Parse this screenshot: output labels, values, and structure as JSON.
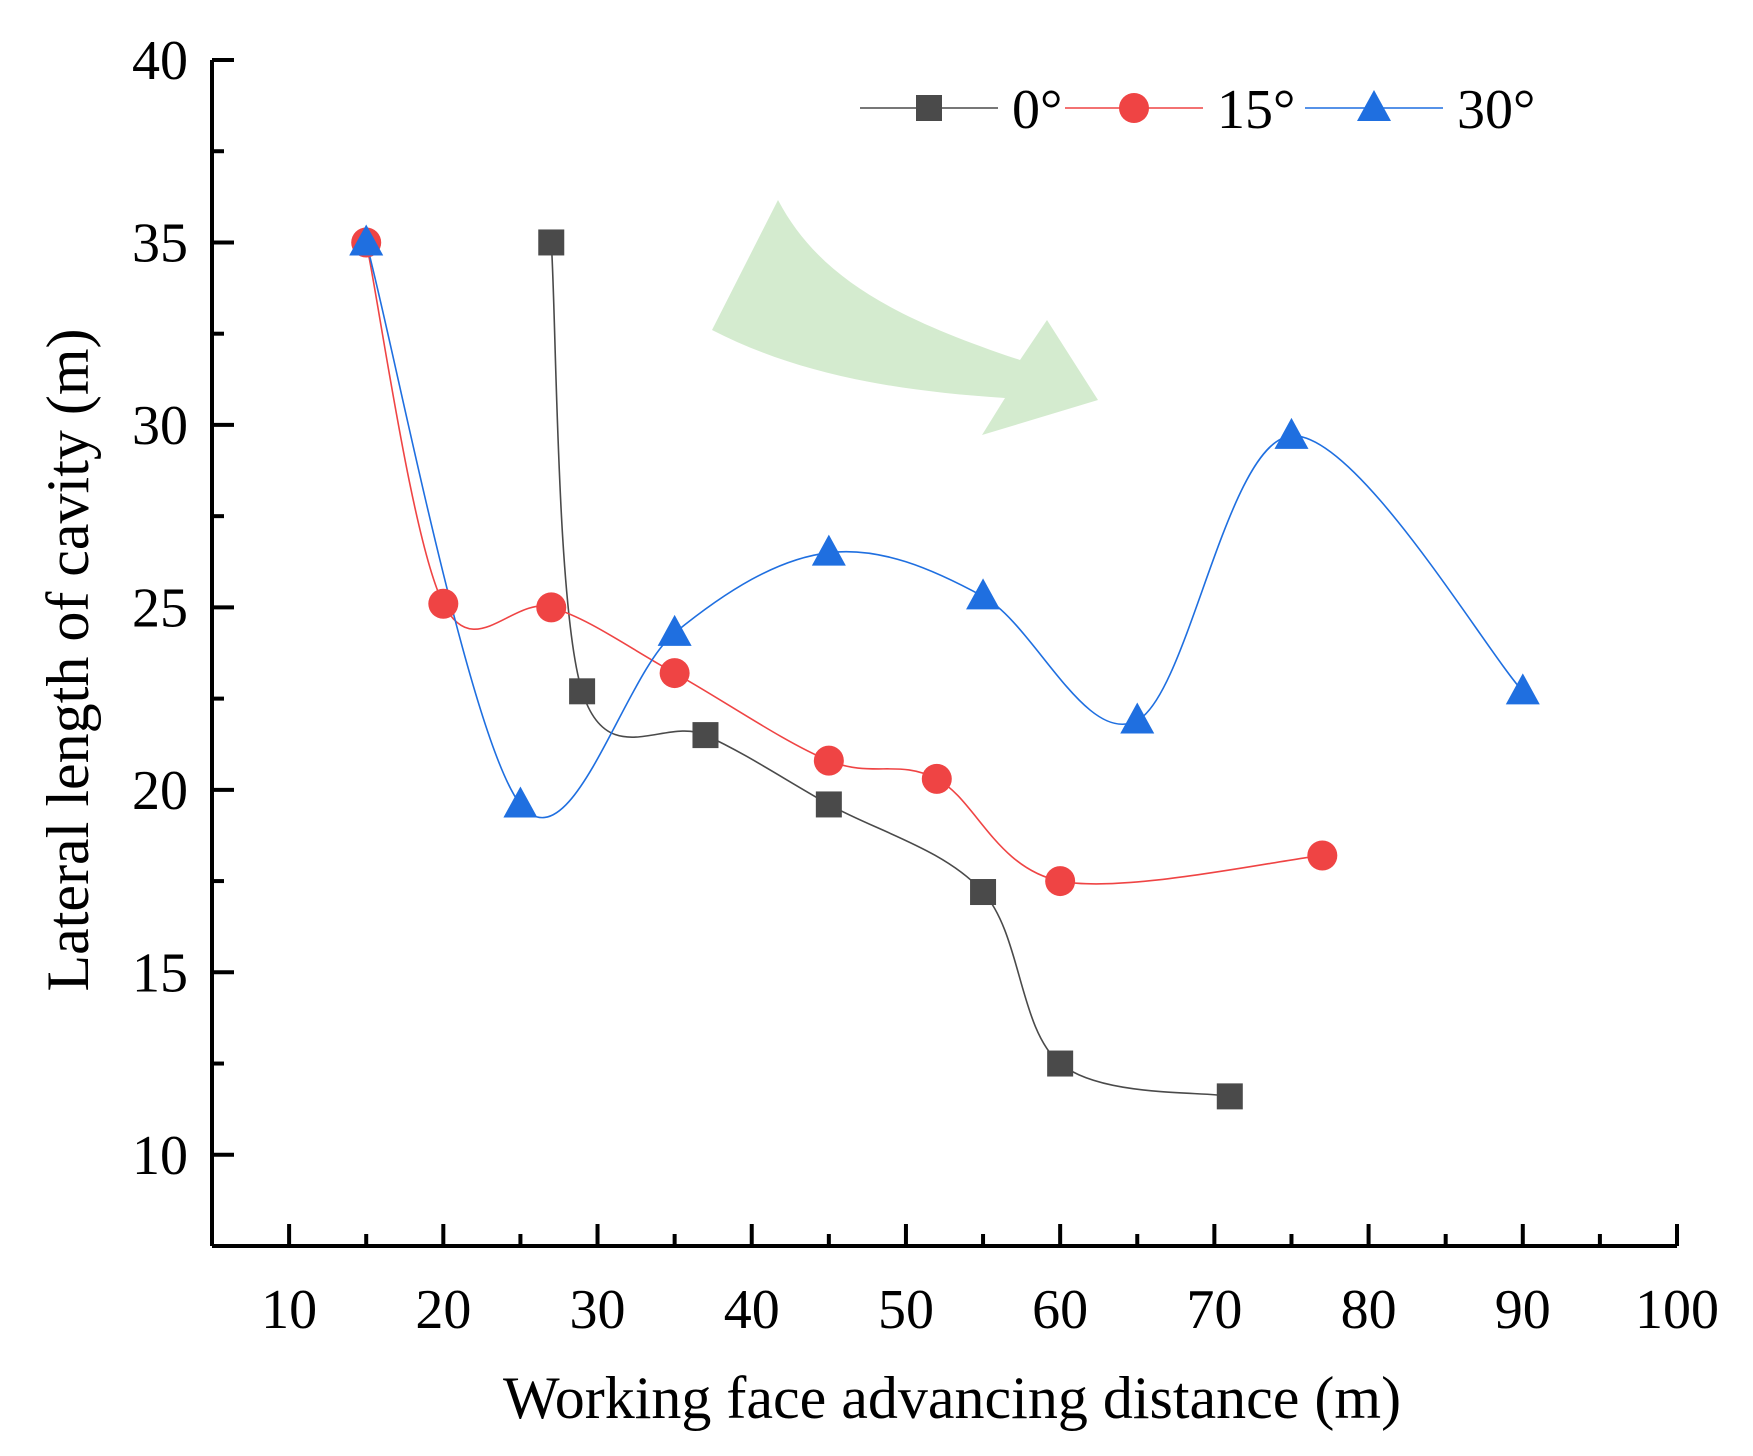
{
  "chart_data": {
    "type": "line",
    "title": "",
    "xlabel": "Working face advancing distance (m)",
    "ylabel": "Lateral length of cavity (m)",
    "xlim": [
      5,
      100
    ],
    "ylim": [
      7.5,
      40
    ],
    "xticks": [
      10,
      20,
      30,
      40,
      50,
      60,
      70,
      80,
      90,
      100
    ],
    "yticks": [
      10,
      15,
      20,
      25,
      30,
      35,
      40
    ],
    "grid": false,
    "legend_position": "top-right",
    "series": [
      {
        "name": "0°",
        "marker": "square",
        "color": "#4a4a4a",
        "x": [
          27,
          29,
          37,
          45,
          55,
          60,
          71
        ],
        "y": [
          35.0,
          22.7,
          21.5,
          19.6,
          17.2,
          12.5,
          11.6
        ]
      },
      {
        "name": "15°",
        "marker": "circle",
        "color": "#ef4444",
        "x": [
          15,
          20,
          27,
          35,
          45,
          52,
          60,
          77
        ],
        "y": [
          35.0,
          25.1,
          25.0,
          23.2,
          20.8,
          20.3,
          17.5,
          18.2
        ]
      },
      {
        "name": "30°",
        "marker": "triangle",
        "color": "#1f6fe0",
        "x": [
          15,
          25,
          35,
          45,
          55,
          65,
          75,
          90
        ],
        "y": [
          35.0,
          19.6,
          24.3,
          26.5,
          25.3,
          21.9,
          29.7,
          22.7
        ]
      }
    ],
    "annotation": {
      "type": "curved-arrow",
      "color": "#d4ebcf",
      "direction": "down-right"
    }
  }
}
